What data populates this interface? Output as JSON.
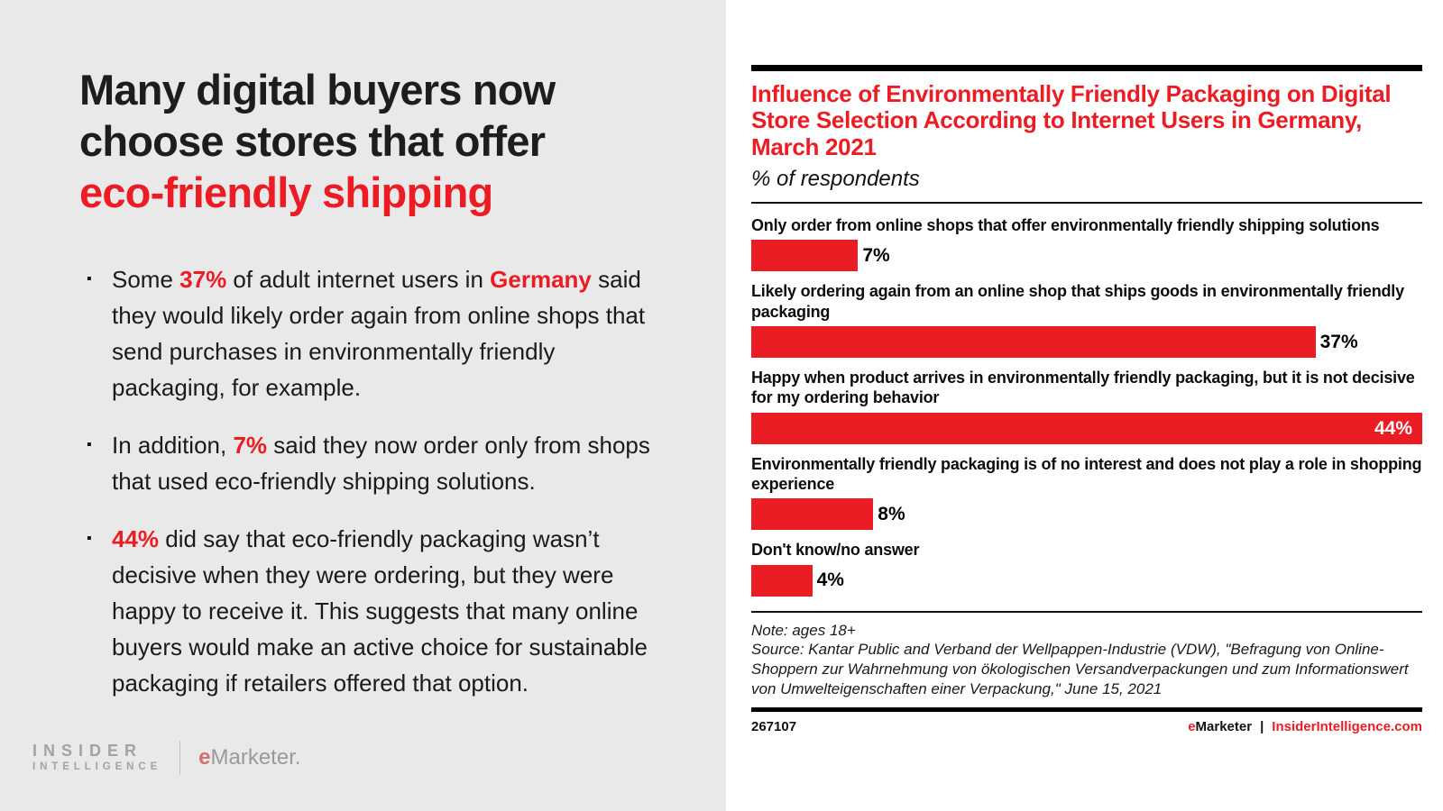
{
  "colors": {
    "accent_red": "#ec1c24",
    "left_bg": "#e9e9e9",
    "logo_gray": "#a3a3a3"
  },
  "left": {
    "headline": {
      "line1": "Many digital buyers now",
      "line2": "choose stores that offer",
      "line3_red": "eco-friendly shipping"
    },
    "bullets": [
      [
        {
          "t": "Some ",
          "c": "plain"
        },
        {
          "t": "37%",
          "c": "em"
        },
        {
          "t": " of adult internet users in ",
          "c": "plain"
        },
        {
          "t": "Germany",
          "c": "em"
        },
        {
          "t": " said they would likely order again from online shops that send purchases in environmentally friendly packaging, for example.",
          "c": "plain"
        }
      ],
      [
        {
          "t": "In addition, ",
          "c": "plain"
        },
        {
          "t": "7%",
          "c": "em"
        },
        {
          "t": " said they now order only from shops that used eco-friendly shipping solutions.",
          "c": "plain"
        }
      ],
      [
        {
          "t": "44%",
          "c": "em"
        },
        {
          "t": " did say that eco-friendly packaging wasn’t decisive when they were ordering, but they were happy to receive it. This suggests that many online buyers would make an active choice for sustainable packaging if retailers offered that option.",
          "c": "plain"
        }
      ]
    ],
    "logos": {
      "insider_line1": "INSIDER",
      "insider_line2": "INTELLIGENCE",
      "emarketer_e": "e",
      "emarketer_rest": "Marketer."
    }
  },
  "chart_data": {
    "type": "bar",
    "orientation": "horizontal",
    "title": "Influence of Environmentally Friendly Packaging on Digital Store Selection According to Internet Users in Germany, March 2021",
    "subtitle": "% of respondents",
    "categories": [
      "Only order from online shops that offer environmentally friendly shipping solutions",
      "Likely ordering again from an online shop that ships goods in environmentally friendly packaging",
      "Happy when product arrives in environmentally friendly packaging, but it is not decisive for my ordering behavior",
      "Environmentally friendly packaging is of no interest and does not play a role in shopping experience",
      "Don't know/no answer"
    ],
    "values": [
      7,
      37,
      44,
      8,
      4
    ],
    "unit": "%",
    "xlim": [
      0,
      44
    ],
    "bar_color": "#ec1c24",
    "grid": false,
    "legend": false,
    "note": "Note: ages 18+",
    "source": "Source: Kantar Public and Verband der Wellpappen-Industrie (VDW), \"Befragung von Online-Shoppern zur Wahrnehmung von ökologischen Versandverpackungen und zum Informationswert von Umwelteigenschaften einer Verpackung,\" June 15, 2021",
    "footer": {
      "id": "267107",
      "brand_e": "e",
      "brand_rest": "Marketer",
      "separator": "|",
      "site": "InsiderIntelligence.com"
    }
  }
}
